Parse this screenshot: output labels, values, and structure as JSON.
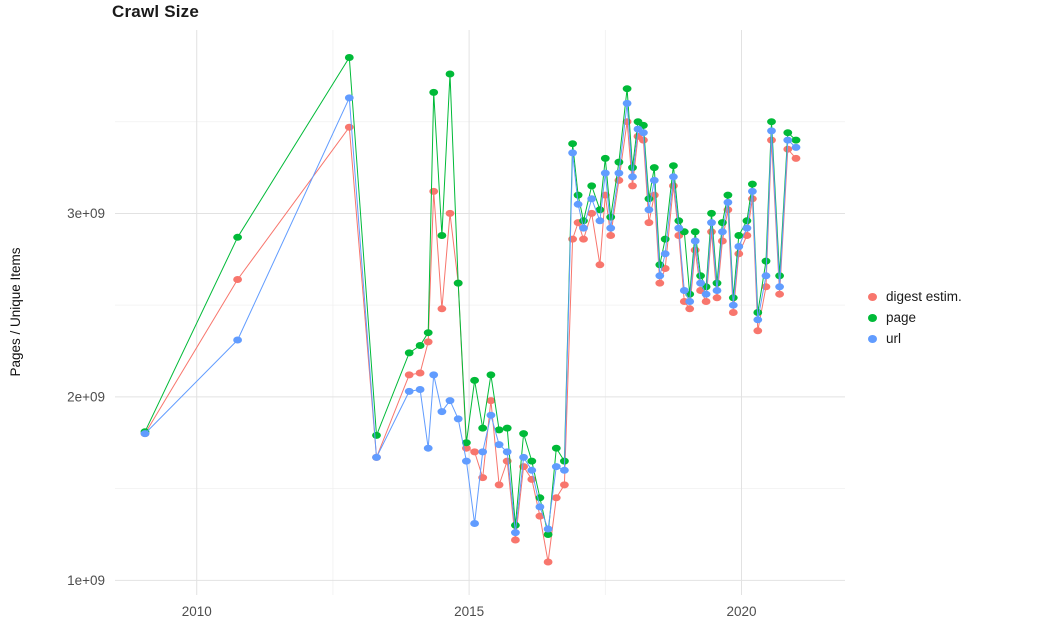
{
  "page": {
    "background": "#ffffff"
  },
  "chart_data": {
    "type": "line",
    "title": "Crawl Size",
    "xlabel": "",
    "ylabel": "Pages / Unique Items",
    "y_unit": "values are in billions (1e9) of pages / unique items",
    "xlim": [
      2008.5,
      2021.9
    ],
    "ylim": [
      0.92,
      4.0
    ],
    "x_ticks": [
      2010,
      2015,
      2020
    ],
    "x_tick_labels": [
      "2010",
      "2015",
      "2020"
    ],
    "x_minor": [
      2012.5,
      2017.5
    ],
    "y_ticks": [
      1,
      2,
      3
    ],
    "y_tick_labels": [
      "1e+09",
      "2e+09",
      "3e+09"
    ],
    "y_minor": [
      1.5,
      2.5,
      3.5
    ],
    "grid": true,
    "grid_major_color": "#e2e2e2",
    "grid_minor_color": "#f0f0f0",
    "tick_text_color": "#4d4d4d",
    "legend_position": "right",
    "x": [
      2009.05,
      2010.75,
      2012.8,
      2013.3,
      2013.9,
      2014.1,
      2014.25,
      2014.35,
      2014.5,
      2014.65,
      2014.8,
      2014.95,
      2015.1,
      2015.25,
      2015.4,
      2015.55,
      2015.7,
      2015.85,
      2016.0,
      2016.15,
      2016.3,
      2016.45,
      2016.6,
      2016.75,
      2016.9,
      2017.0,
      2017.1,
      2017.25,
      2017.4,
      2017.5,
      2017.6,
      2017.75,
      2017.9,
      2018.0,
      2018.1,
      2018.2,
      2018.3,
      2018.4,
      2018.5,
      2018.6,
      2018.75,
      2018.85,
      2018.95,
      2019.05,
      2019.15,
      2019.25,
      2019.35,
      2019.45,
      2019.55,
      2019.65,
      2019.75,
      2019.85,
      2019.95,
      2020.1,
      2020.2,
      2020.3,
      2020.45,
      2020.55,
      2020.7,
      2020.85,
      2021.0
    ],
    "series": [
      {
        "name": "digest estim.",
        "color": "#F8766D",
        "values": [
          1.8,
          2.64,
          3.47,
          1.67,
          2.12,
          2.13,
          2.3,
          3.12,
          2.48,
          3.0,
          2.62,
          1.72,
          1.7,
          1.56,
          1.98,
          1.52,
          1.65,
          1.22,
          1.62,
          1.55,
          1.35,
          1.1,
          1.45,
          1.52,
          2.86,
          2.95,
          2.86,
          3.0,
          2.72,
          3.1,
          2.88,
          3.18,
          3.5,
          3.15,
          3.42,
          3.4,
          2.95,
          3.1,
          2.62,
          2.7,
          3.15,
          2.88,
          2.52,
          2.48,
          2.8,
          2.58,
          2.52,
          2.9,
          2.54,
          2.85,
          3.02,
          2.46,
          2.78,
          2.88,
          3.08,
          2.36,
          2.6,
          3.4,
          2.56,
          3.35,
          3.3
        ]
      },
      {
        "name": "page",
        "color": "#00BA38",
        "values": [
          1.81,
          2.87,
          3.85,
          1.79,
          2.24,
          2.28,
          2.35,
          3.66,
          2.88,
          3.76,
          2.62,
          1.75,
          2.09,
          1.83,
          2.12,
          1.82,
          1.83,
          1.3,
          1.8,
          1.65,
          1.45,
          1.25,
          1.72,
          1.65,
          3.38,
          3.1,
          2.96,
          3.15,
          3.02,
          3.3,
          2.98,
          3.28,
          3.68,
          3.25,
          3.5,
          3.48,
          3.08,
          3.25,
          2.72,
          2.86,
          3.26,
          2.96,
          2.9,
          2.56,
          2.9,
          2.66,
          2.6,
          3.0,
          2.62,
          2.95,
          3.1,
          2.54,
          2.88,
          2.96,
          3.16,
          2.46,
          2.74,
          3.5,
          2.66,
          3.44,
          3.4
        ]
      },
      {
        "name": "url",
        "color": "#619CFF",
        "values": [
          1.8,
          2.31,
          3.63,
          1.67,
          2.03,
          2.04,
          1.72,
          2.12,
          1.92,
          1.98,
          1.88,
          1.65,
          1.31,
          1.7,
          1.9,
          1.74,
          1.7,
          1.26,
          1.67,
          1.6,
          1.4,
          1.28,
          1.62,
          1.6,
          3.33,
          3.05,
          2.92,
          3.08,
          2.96,
          3.22,
          2.92,
          3.22,
          3.6,
          3.2,
          3.46,
          3.44,
          3.02,
          3.18,
          2.66,
          2.78,
          3.2,
          2.92,
          2.58,
          2.52,
          2.85,
          2.62,
          2.56,
          2.95,
          2.58,
          2.9,
          3.06,
          2.5,
          2.82,
          2.92,
          3.12,
          2.42,
          2.66,
          3.45,
          2.6,
          3.4,
          3.36
        ]
      }
    ]
  }
}
